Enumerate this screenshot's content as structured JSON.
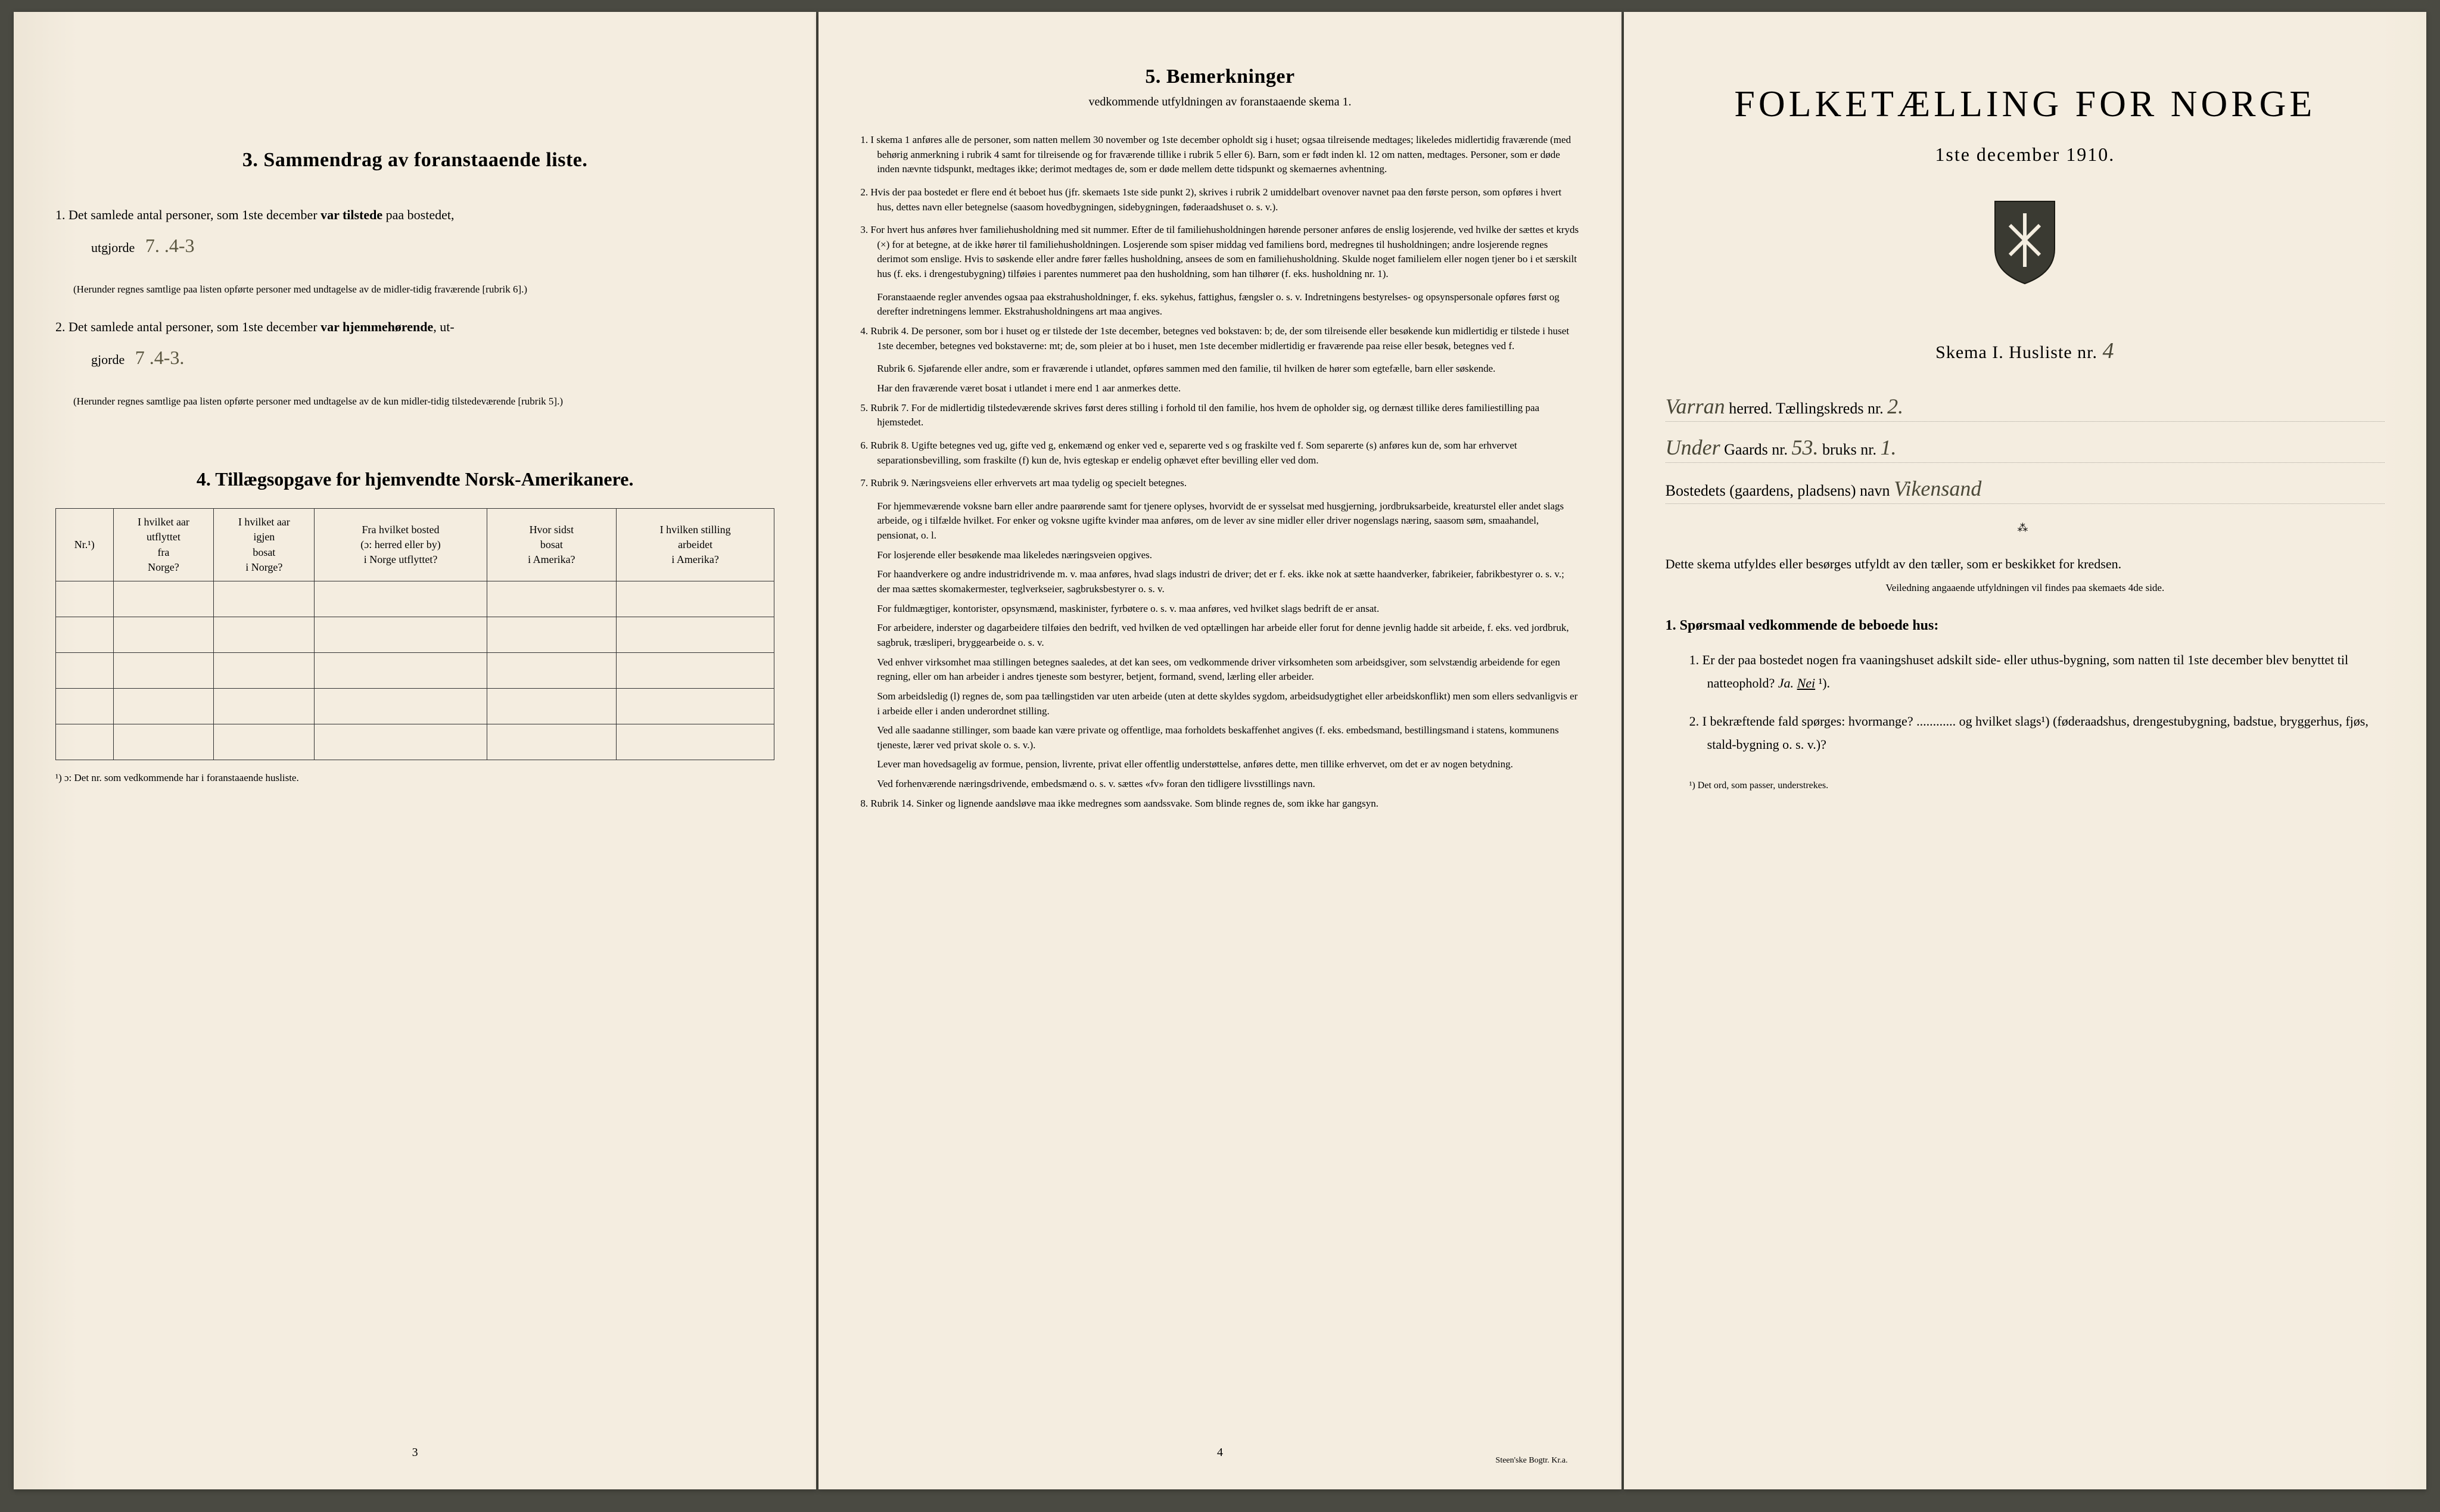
{
  "colors": {
    "paper": "#f4ede0",
    "ink": "#1a1a14",
    "handwriting": "#4a4838",
    "background": "#4a4a42"
  },
  "typography": {
    "body_fontsize": 22,
    "title_fontsize": 34,
    "bigtitle_fontsize": 62,
    "small_fontsize": 17,
    "hw_fontsize": 36
  },
  "left": {
    "sec3_title": "3.   Sammendrag av foranstaaende liste.",
    "item1_a": "1. Det samlede antal personer, som 1ste december ",
    "item1_b": "var tilstede",
    "item1_c": " paa bostedet,",
    "item1_d": "utgjorde ",
    "item1_val": "7.  .4-3",
    "item1_note": "(Herunder regnes samtlige paa listen opførte personer med undtagelse av de midler-tidig fraværende [rubrik 6].)",
    "item2_a": "2. Det samlede antal personer, som 1ste december ",
    "item2_b": "var hjemmehørende",
    "item2_c": ", ut-",
    "item2_d": "gjorde ",
    "item2_val": "7    .4-3.",
    "item2_note": "(Herunder regnes samtlige paa listen opførte personer med undtagelse av de kun midler-tidig tilstedeværende [rubrik 5].)",
    "sec4_title": "4.  Tillægsopgave for hjemvendte Norsk-Amerikanere.",
    "table": {
      "columns": [
        "Nr.¹)",
        "I hvilket aar\nutflyttet\nfra\nNorge?",
        "I hvilket aar\nigjen\nbosat\ni Norge?",
        "Fra hvilket bosted\n(ɔ: herred eller by)\ni Norge utflyttet?",
        "Hvor sidst\nbosat\ni Amerika?",
        "I hvilken stilling\narbeidet\ni Amerika?"
      ],
      "col_widths": [
        "8%",
        "14%",
        "14%",
        "24%",
        "18%",
        "22%"
      ],
      "blank_rows": 5
    },
    "footnote": "¹) ɔ: Det nr. som vedkommende har i foranstaaende husliste.",
    "page_num": "3"
  },
  "middle": {
    "title": "5.   Bemerkninger",
    "subtitle": "vedkommende utfyldningen av foranstaaende skema 1.",
    "items": [
      "1. I skema 1 anføres alle de personer, som natten mellem 30 november og 1ste december opholdt sig i huset; ogsaa tilreisende medtages; likeledes midlertidig fraværende (med behørig anmerkning i rubrik 4 samt for tilreisende og for fraværende tillike i rubrik 5 eller 6). Barn, som er født inden kl. 12 om natten, medtages. Personer, som er døde inden nævnte tidspunkt, medtages ikke; derimot medtages de, som er døde mellem dette tidspunkt og skemaernes avhentning.",
      "2. Hvis der paa bostedet er flere end ét beboet hus (jfr. skemaets 1ste side punkt 2), skrives i rubrik 2 umiddelbart ovenover navnet paa den første person, som opføres i hvert hus, dettes navn eller betegnelse (saasom hovedbygningen, sidebygningen, føderaadshuset o. s. v.).",
      "3. For hvert hus anføres hver familiehusholdning med sit nummer. Efter de til familiehusholdningen hørende personer anføres de enslig losjerende, ved hvilke der sættes et kryds (×) for at betegne, at de ikke hører til familiehusholdningen. Losjerende som spiser middag ved familiens bord, medregnes til husholdningen; andre losjerende regnes derimot som enslige. Hvis to søskende eller andre fører fælles husholdning, ansees de som en familiehusholdning. Skulde noget familielem eller nogen tjener bo i et særskilt hus (f. eks. i drengestubygning) tilføies i parentes nummeret paa den husholdning, som han tilhører (f. eks. husholdning nr. 1).",
      "Foranstaaende regler anvendes ogsaa paa ekstrahusholdninger, f. eks. sykehus, fattighus, fængsler o. s. v. Indretningens bestyrelses- og opsynspersonale opføres først og derefter indretningens lemmer. Ekstrahusholdningens art maa angives.",
      "4. Rubrik 4. De personer, som bor i huset og er tilstede der 1ste december, betegnes ved bokstaven: b; de, der som tilreisende eller besøkende kun midlertidig er tilstede i huset 1ste december, betegnes ved bokstaverne: mt; de, som pleier at bo i huset, men 1ste december midlertidig er fraværende paa reise eller besøk, betegnes ved f.",
      "Rubrik 6. Sjøfarende eller andre, som er fraværende i utlandet, opføres sammen med den familie, til hvilken de hører som egtefælle, barn eller søskende.",
      "Har den fraværende været bosat i utlandet i mere end 1 aar anmerkes dette.",
      "5. Rubrik 7. For de midlertidig tilstedeværende skrives først deres stilling i forhold til den familie, hos hvem de opholder sig, og dernæst tillike deres familiestilling paa hjemstedet.",
      "6. Rubrik 8. Ugifte betegnes ved ug, gifte ved g, enkemænd og enker ved e, separerte ved s og fraskilte ved f. Som separerte (s) anføres kun de, som har erhvervet separationsbevilling, som fraskilte (f) kun de, hvis egteskap er endelig ophævet efter bevilling eller ved dom.",
      "7. Rubrik 9. Næringsveiens eller erhvervets art maa tydelig og specielt betegnes.",
      "For hjemmeværende voksne barn eller andre paarørende samt for tjenere oplyses, hvorvidt de er sysselsat med husgjerning, jordbruksarbeide, kreaturstel eller andet slags arbeide, og i tilfælde hvilket. For enker og voksne ugifte kvinder maa anføres, om de lever av sine midler eller driver nogenslags næring, saasom søm, smaahandel, pensionat, o. l.",
      "For losjerende eller besøkende maa likeledes næringsveien opgives.",
      "For haandverkere og andre industridrivende m. v. maa anføres, hvad slags industri de driver; det er f. eks. ikke nok at sætte haandverker, fabrikeier, fabrikbestyrer o. s. v.; der maa sættes skomakermester, teglverkseier, sagbruksbestyrer o. s. v.",
      "For fuldmægtiger, kontorister, opsynsmænd, maskinister, fyrbøtere o. s. v. maa anføres, ved hvilket slags bedrift de er ansat.",
      "For arbeidere, inderster og dagarbeidere tilføies den bedrift, ved hvilken de ved optællingen har arbeide eller forut for denne jevnlig hadde sit arbeide, f. eks. ved jordbruk, sagbruk, træsliperi, bryggearbeide o. s. v.",
      "Ved enhver virksomhet maa stillingen betegnes saaledes, at det kan sees, om vedkommende driver virksomheten som arbeidsgiver, som selvstændig arbeidende for egen regning, eller om han arbeider i andres tjeneste som bestyrer, betjent, formand, svend, lærling eller arbeider.",
      "Som arbeidsledig (l) regnes de, som paa tællingstiden var uten arbeide (uten at dette skyldes sygdom, arbeidsudygtighet eller arbeidskonflikt) men som ellers sedvanligvis er i arbeide eller i anden underordnet stilling.",
      "Ved alle saadanne stillinger, som baade kan være private og offentlige, maa forholdets beskaffenhet angives (f. eks. embedsmand, bestillingsmand i statens, kommunens tjeneste, lærer ved privat skole o. s. v.).",
      "Lever man hovedsagelig av formue, pension, livrente, privat eller offentlig understøttelse, anføres dette, men tillike erhvervet, om det er av nogen betydning.",
      "Ved forhenværende næringsdrivende, embedsmænd o. s. v. sættes «fv» foran den tidligere livsstillings navn.",
      "8. Rubrik 14. Sinker og lignende aandsløve maa ikke medregnes som aandssvake. Som blinde regnes de, som ikke har gangsyn."
    ],
    "page_num": "4",
    "printer": "Steen'ske Bogtr.  Kr.a."
  },
  "right": {
    "big_title": "FOLKETÆLLING FOR NORGE",
    "date": "1ste december 1910.",
    "skema_a": "Skema I.  Husliste nr. ",
    "skema_val": "4",
    "line1_hw": "Varran",
    "line1_print": " herred.   Tællingskreds nr. ",
    "line1_val": "2.",
    "line2_hw1": "Under",
    "line2_print1": " Gaards nr. ",
    "line2_val1": "53.",
    "line2_print2": " bruks nr. ",
    "line2_val2": "1.",
    "line3_print": "Bostedets (gaardens, pladsens) navn ",
    "line3_hw": "Vikensand",
    "instr_a": "Dette skema utfyldes eller besørges utfyldt av den tæller, som er beskikket for kredsen.",
    "instr_small": "Veiledning angaaende utfyldningen vil findes paa skemaets 4de side.",
    "q_head": "1. Spørsmaal vedkommende de beboede hus:",
    "q1_a": "1. Er der paa bostedet nogen fra vaaningshuset adskilt side- eller uthus-bygning, som natten til 1ste december blev benyttet til natteophold?   ",
    "q1_ja": "Ja.",
    "q1_nei": "Nei",
    "q1_sup": " ¹).",
    "q2": "2. I bekræftende fald spørges: hvormange? ............ og hvilket slags¹) (føderaadshus, drengestubygning, badstue, bryggerhus, fjøs, stald-bygning o. s. v.)?",
    "foot": "¹) Det ord, som passer, understrekes."
  }
}
